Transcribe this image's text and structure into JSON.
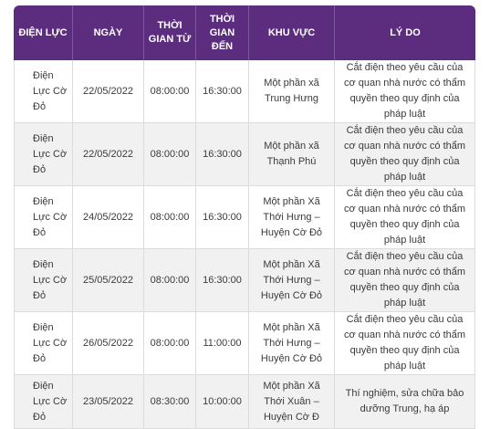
{
  "header": {
    "dien_luc": "ĐIỆN LỰC",
    "ngay": "NGÀY",
    "tu": "THỜI GIAN TỪ",
    "den": "THỜI GIAN ĐẾN",
    "khu_vuc": "KHU VỰC",
    "ly_do": "LÝ DO"
  },
  "rows": [
    {
      "dien_luc": "Điện Lực Cờ Đỏ",
      "ngay": "22/05/2022",
      "tu": "08:00:00",
      "den": "16:30:00",
      "khu_vuc": "Một phần xã Trung Hưng",
      "ly_do": "Cắt điện theo yêu cầu của cơ quan nhà nước có thẩm quyền theo quy định của pháp luật"
    },
    {
      "dien_luc": "Điện Lực Cờ Đỏ",
      "ngay": "22/05/2022",
      "tu": "08:00:00",
      "den": "16:30:00",
      "khu_vuc": "Một phần xã Thạnh Phú",
      "ly_do": "Cắt điện theo yêu cầu của cơ quan nhà nước có thẩm quyền theo quy định của pháp luật"
    },
    {
      "dien_luc": "Điện Lực Cờ Đỏ",
      "ngay": "24/05/2022",
      "tu": "08:00:00",
      "den": "16:30:00",
      "khu_vuc": "Một phần Xã Thới Hưng – Huyện Cờ Đỏ",
      "ly_do": "Cắt điện theo yêu cầu của cơ quan nhà nước có thẩm quyền theo quy định của pháp luật"
    },
    {
      "dien_luc": "Điện Lực Cờ Đỏ",
      "ngay": "25/05/2022",
      "tu": "08:00:00",
      "den": "16:30:00",
      "khu_vuc": "Một phần Xã Thới Hưng – Huyện Cờ Đỏ",
      "ly_do": "Cắt điện theo yêu cầu của cơ quan nhà nước có thẩm quyền theo quy định của pháp luật"
    },
    {
      "dien_luc": "Điện Lực Cờ Đỏ",
      "ngay": "26/05/2022",
      "tu": "08:00:00",
      "den": "11:00:00",
      "khu_vuc": "Một phần Xã Thới Hưng – Huyện Cờ Đỏ",
      "ly_do": "Cắt điện theo yêu cầu của cơ quan nhà nước có thẩm quyền theo quy định của pháp luật"
    },
    {
      "dien_luc": "Điện Lực Cờ Đỏ",
      "ngay": "23/05/2022",
      "tu": "08:30:00",
      "den": "10:00:00",
      "khu_vuc": "Một phần Xã Thới Xuân – Huyện Cờ Đ",
      "ly_do": "Thí nghiệm, sửa chữa bảo dưỡng Trung, hạ áp"
    }
  ]
}
